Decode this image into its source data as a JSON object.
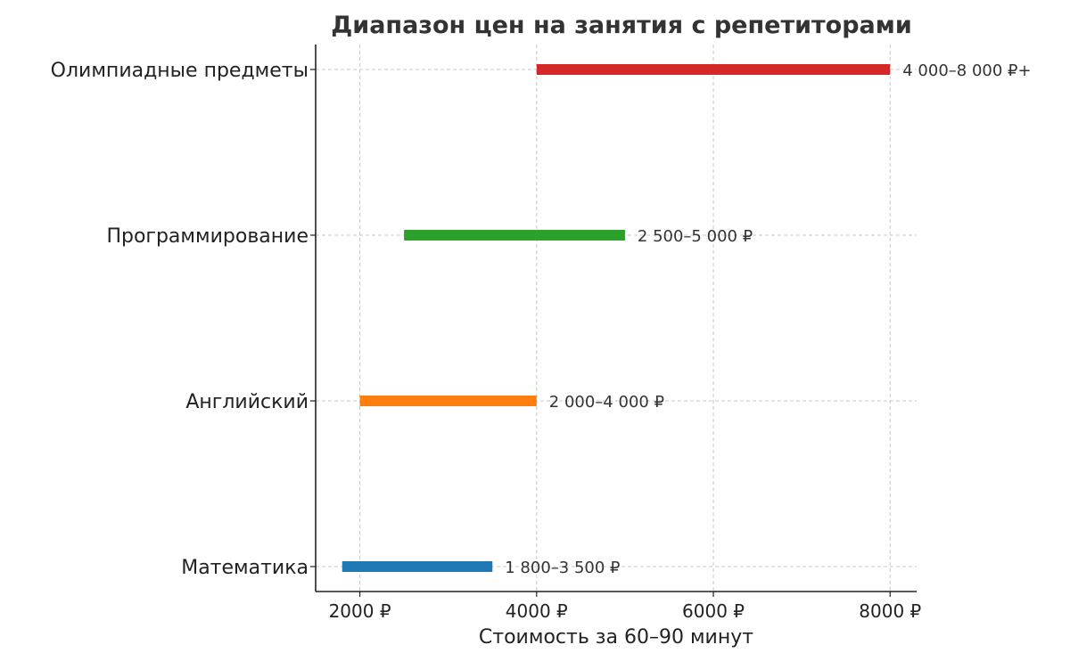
{
  "chart_data": {
    "type": "bar",
    "orientation": "horizontal-range",
    "title": "Диапазон цен на занятия с репетиторами",
    "xlabel": "Стоимость за 60–90 минут",
    "ylabel": "",
    "xlim": [
      1500,
      8300
    ],
    "xticks": [
      2000,
      4000,
      6000,
      8000
    ],
    "xtick_labels": [
      "2000 ₽",
      "4000 ₽",
      "6000 ₽",
      "8000 ₽"
    ],
    "grid": true,
    "categories": [
      "Математика",
      "Английский",
      "Программирование",
      "Олимпиадные предметы"
    ],
    "ranges": [
      {
        "category": "Математика",
        "min": 1800,
        "max": 3500,
        "label": "1 800–3 500 ₽",
        "color": "#1f77b4"
      },
      {
        "category": "Английский",
        "min": 2000,
        "max": 4000,
        "label": "2 000–4 000 ₽",
        "color": "#ff7f0e"
      },
      {
        "category": "Программирование",
        "min": 2500,
        "max": 5000,
        "label": "2 500–5 000 ₽",
        "color": "#2ca02c"
      },
      {
        "category": "Олимпиадные предметы",
        "min": 4000,
        "max": 8000,
        "label": "4 000–8 000 ₽+",
        "color": "#d62728"
      }
    ]
  }
}
